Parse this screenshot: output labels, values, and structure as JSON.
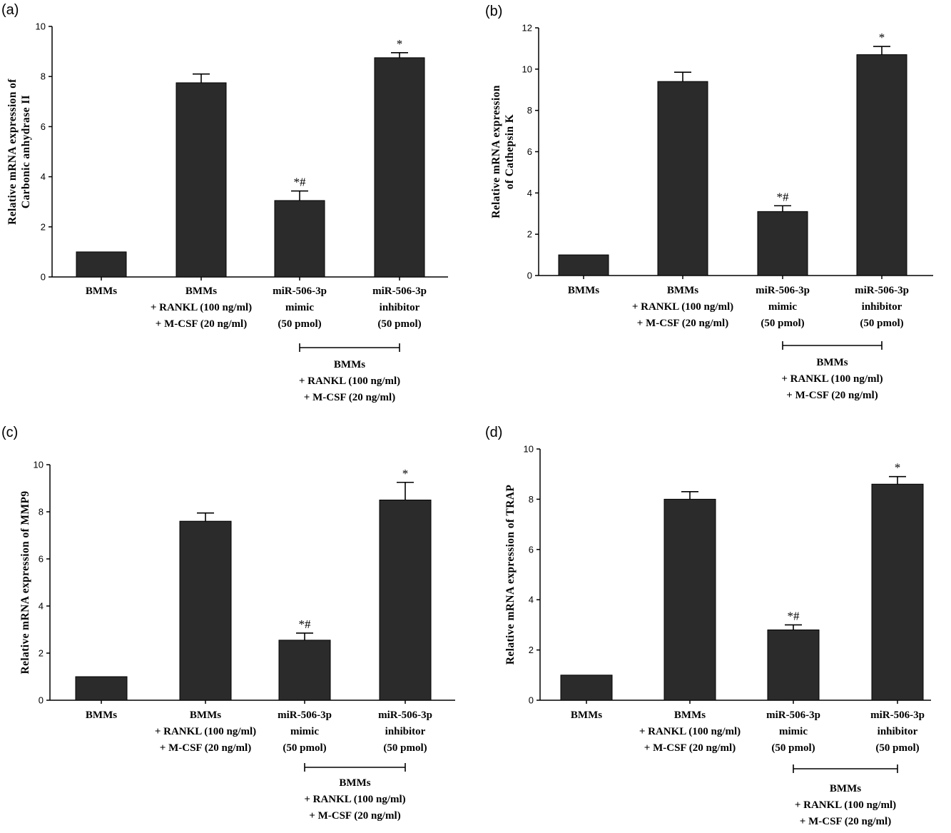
{
  "chart_data": [
    {
      "panel_label": "(a)",
      "type": "bar",
      "ylabel": [
        "Relative mRNA expression of",
        "Carbonic anhydrase II"
      ],
      "ylim": [
        0,
        10
      ],
      "yticks": [
        0,
        2,
        4,
        6,
        8,
        10
      ],
      "categories": [
        [
          "BMMs"
        ],
        [
          "BMMs",
          "+ RANKL (100 ng/ml)",
          "+ M-CSF (20 ng/ml)"
        ],
        [
          "miR-506-3p",
          "mimic",
          "(50 pmol)"
        ],
        [
          "miR-506-3p",
          "inhibitor",
          "(50 pmol)"
        ]
      ],
      "values": [
        1.0,
        7.75,
        3.05,
        8.75
      ],
      "errors": [
        0,
        0.35,
        0.38,
        0.2
      ],
      "annotations": [
        "",
        "",
        "*#",
        "*"
      ],
      "group_label": [
        "BMMs",
        "+ RANKL (100 ng/ml)",
        "+ M-CSF (20 ng/ml)"
      ]
    },
    {
      "panel_label": "(b)",
      "type": "bar",
      "ylabel": [
        "Relative mRNA expression",
        "of Cathepsin K"
      ],
      "ylim": [
        0,
        12
      ],
      "yticks": [
        0,
        2,
        4,
        6,
        8,
        10,
        12
      ],
      "categories": [
        [
          "BMMs"
        ],
        [
          "BMMs",
          "+ RANKL (100 ng/ml)",
          "+ M-CSF (20 ng/ml)"
        ],
        [
          "miR-506-3p",
          "mimic",
          "(50 pmol)"
        ],
        [
          "miR-506-3p",
          "inhibitor",
          "(50 pmol)"
        ]
      ],
      "values": [
        1.0,
        9.4,
        3.1,
        10.7
      ],
      "errors": [
        0,
        0.45,
        0.28,
        0.4
      ],
      "annotations": [
        "",
        "",
        "*#",
        "*"
      ],
      "group_label": [
        "BMMs",
        "+ RANKL (100 ng/ml)",
        "+ M-CSF (20 ng/ml)"
      ]
    },
    {
      "panel_label": "(c)",
      "type": "bar",
      "ylabel": [
        "Relative mRNA expression of MMP9"
      ],
      "ylim": [
        0,
        10
      ],
      "yticks": [
        0,
        2,
        4,
        6,
        8,
        10
      ],
      "categories": [
        [
          "BMMs"
        ],
        [
          "BMMs",
          "+ RANKL (100 ng/ml)",
          "+ M-CSF (20 ng/ml)"
        ],
        [
          "miR-506-3p",
          "mimic",
          "(50 pmol)"
        ],
        [
          "miR-506-3p",
          "inhibitor",
          "(50 pmol)"
        ]
      ],
      "values": [
        1.0,
        7.6,
        2.55,
        8.5
      ],
      "errors": [
        0,
        0.35,
        0.3,
        0.75
      ],
      "annotations": [
        "",
        "",
        "*#",
        "*"
      ],
      "group_label": [
        "BMMs",
        "+ RANKL (100 ng/ml)",
        "+ M-CSF (20 ng/ml)"
      ]
    },
    {
      "panel_label": "(d)",
      "type": "bar",
      "ylabel": [
        "Relative mRNA expression of TRAP"
      ],
      "ylim": [
        0,
        10
      ],
      "yticks": [
        0,
        2,
        4,
        6,
        8,
        10
      ],
      "categories": [
        [
          "BMMs"
        ],
        [
          "BMMs",
          "+ RANKL (100 ng/ml)",
          "+ M-CSF (20 ng/ml)"
        ],
        [
          "miR-506-3p",
          "mimic",
          "(50 pmol)"
        ],
        [
          "miR-506-3p",
          "inhibitor",
          "(50 pmol)"
        ]
      ],
      "values": [
        1.0,
        8.0,
        2.8,
        8.6
      ],
      "errors": [
        0,
        0.3,
        0.2,
        0.3
      ],
      "annotations": [
        "",
        "",
        "*#",
        "*"
      ],
      "group_label": [
        "BMMs",
        "+ RANKL (100 ng/ml)",
        "+ M-CSF (20 ng/ml)"
      ]
    }
  ]
}
